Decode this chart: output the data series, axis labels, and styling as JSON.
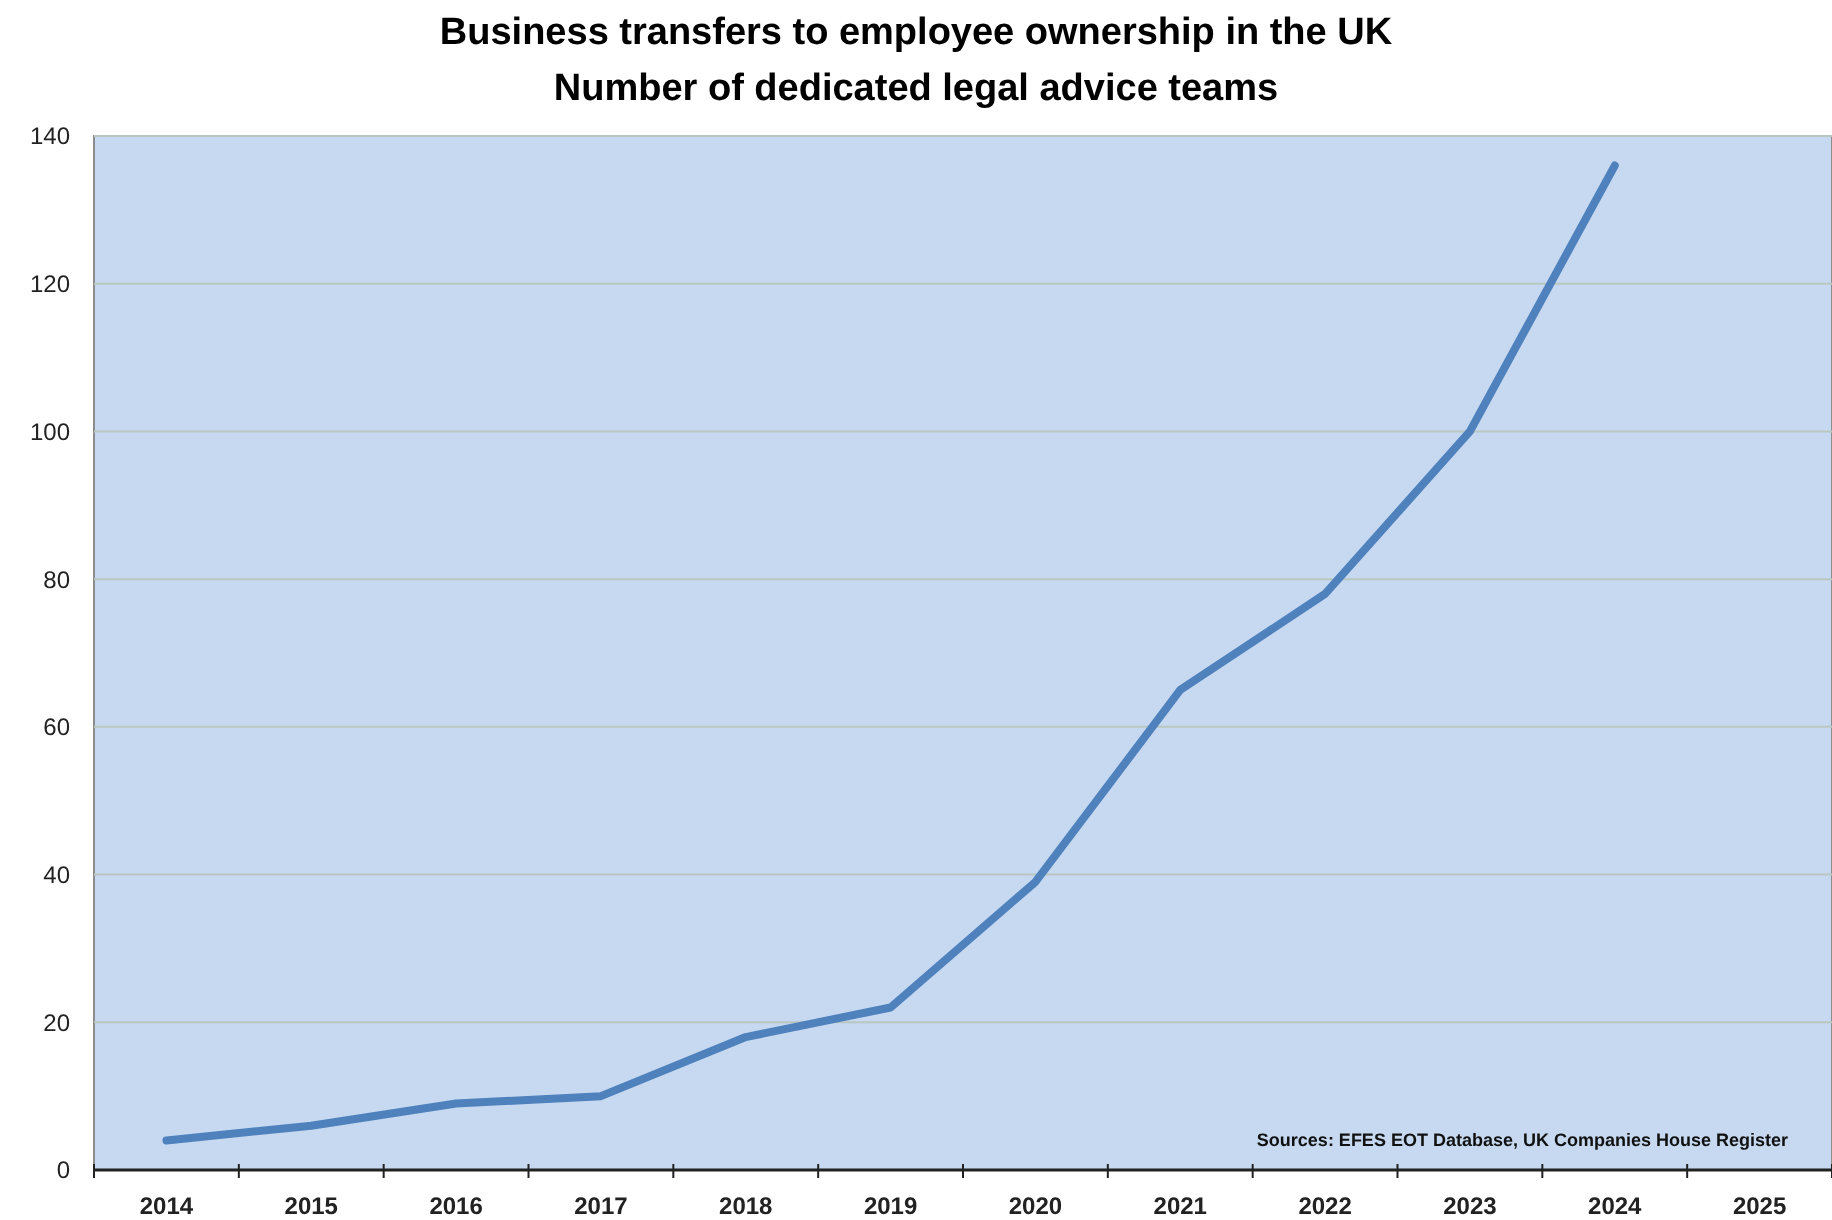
{
  "chart_data": {
    "type": "line",
    "title": "Business transfers to employee ownership in the UK",
    "subtitle": "Number of dedicated legal advice teams",
    "categories": [
      "2014",
      "2015",
      "2016",
      "2017",
      "2018",
      "2019",
      "2020",
      "2021",
      "2022",
      "2023",
      "2024",
      "2025"
    ],
    "series": [
      {
        "color": "#4f81bd",
        "values": [
          4,
          6,
          9,
          10,
          18,
          22,
          39,
          65,
          78,
          100,
          136,
          null
        ]
      }
    ],
    "ylim": [
      0,
      140
    ],
    "yticks": [
      0,
      20,
      40,
      60,
      80,
      100,
      120,
      140
    ],
    "grid": "y",
    "marker": "none",
    "line_style": "solid",
    "annotations": [
      "Sources: EFES EOT Database, UK Companies  House Register"
    ]
  }
}
